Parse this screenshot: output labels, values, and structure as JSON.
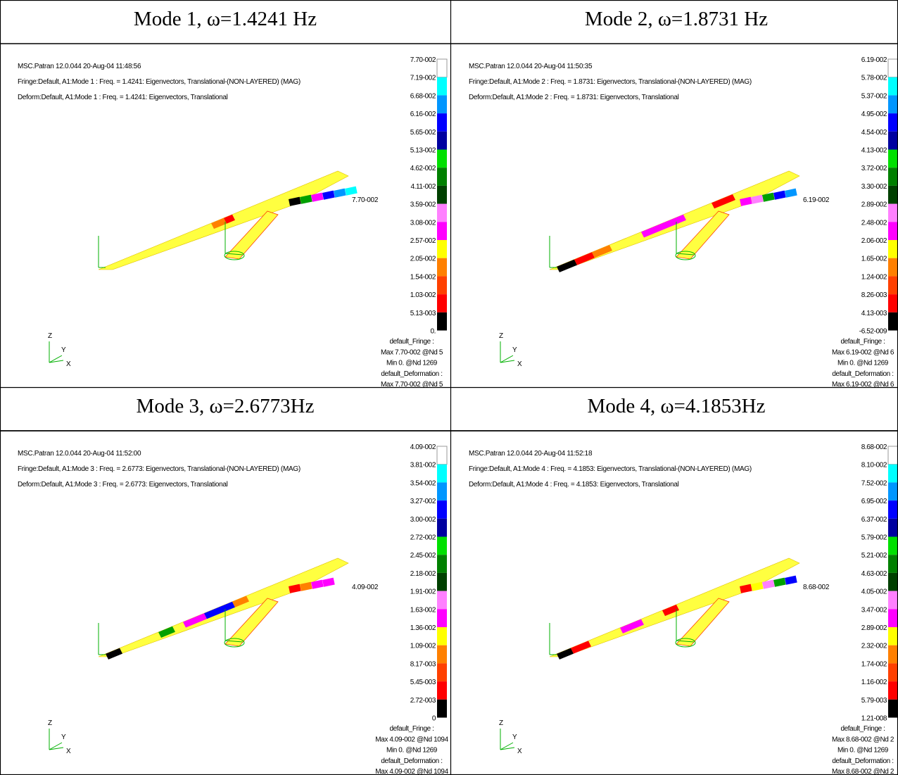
{
  "panels": [
    {
      "title": "Mode 1, ω=1.4241 Hz",
      "header_lines": [
        "MSC.Patran 12.0.044 20-Aug-04 11:48:56",
        "Fringe:Default, A1:Mode 1 : Freq. = 1.4241: Eigenvectors, Translational-(NON-LAYERED) (MAG)",
        "Deform:Default, A1:Mode 1 : Freq. = 1.4241: Eigenvectors, Translational"
      ],
      "legend_labels": [
        "7.70-002",
        "7.19-002",
        "6.68-002",
        "6.16-002",
        "5.65-002",
        "5.13-002",
        "4.62-002",
        "4.11-002",
        "3.59-002",
        "3.08-002",
        "2.57-002",
        "2.05-002",
        "1.54-002",
        "1.03-002",
        "5.13-003",
        "0."
      ],
      "callout": "7.70-002",
      "legend_notes": [
        "default_Fringe :",
        "Max 7.70-002 @Nd 5",
        "Min 0. @Nd 1269",
        "default_Deformation :",
        "Max 7.70-002 @Nd 5"
      ],
      "triad_labels": [
        "Z",
        "Y",
        "X"
      ]
    },
    {
      "title": "Mode 2, ω=1.8731 Hz",
      "header_lines": [
        "MSC.Patran 12.0.044 20-Aug-04 11:50:35",
        "Fringe:Default, A1:Mode 2 : Freq. = 1.8731: Eigenvectors, Translational-(NON-LAYERED) (MAG)",
        "Deform:Default, A1:Mode 2 : Freq. = 1.8731: Eigenvectors, Translational"
      ],
      "legend_labels": [
        "6.19-002",
        "5.78-002",
        "5.37-002",
        "4.95-002",
        "4.54-002",
        "4.13-002",
        "3.72-002",
        "3.30-002",
        "2.89-002",
        "2.48-002",
        "2.06-002",
        "1.65-002",
        "1.24-002",
        "8.26-003",
        "4.13-003",
        "-6.52-009"
      ],
      "callout": "6.19-002",
      "legend_notes": [
        "default_Fringe :",
        "Max 6.19-002 @Nd 6",
        "Min 0. @Nd 1269",
        "default_Deformation :",
        "Max 6.19-002 @Nd 6"
      ],
      "triad_labels": [
        "Z",
        "Y",
        "X"
      ]
    },
    {
      "title": "Mode 3, ω=2.6773Hz",
      "header_lines": [
        "MSC.Patran 12.0.044 20-Aug-04 11:52:00",
        "Fringe:Default, A1:Mode 3 : Freq. = 2.6773: Eigenvectors, Translational-(NON-LAYERED) (MAG)",
        "Deform:Default, A1:Mode 3 : Freq. = 2.6773: Eigenvectors, Translational"
      ],
      "legend_labels": [
        "4.09-002",
        "3.81-002",
        "3.54-002",
        "3.27-002",
        "3.00-002",
        "2.72-002",
        "2.45-002",
        "2.18-002",
        "1.91-002",
        "1.63-002",
        "1.36-002",
        "1.09-002",
        "8.17-003",
        "5.45-003",
        "2.72-003",
        "0"
      ],
      "callout": "4.09-002",
      "legend_notes": [
        "default_Fringe :",
        "Max 4.09-002 @Nd 1094",
        "Min 0. @Nd 1269",
        "default_Deformation :",
        "Max 4.09-002 @Nd 1094"
      ],
      "triad_labels": [
        "Z",
        "Y",
        "X"
      ]
    },
    {
      "title": "Mode 4, ω=4.1853Hz",
      "header_lines": [
        "MSC.Patran 12.0.044 20-Aug-04 11:52:18",
        "Fringe:Default, A1:Mode 4 : Freq. = 4.1853: Eigenvectors, Translational-(NON-LAYERED) (MAG)",
        "Deform:Default, A1:Mode 4 : Freq. = 4.1853: Eigenvectors, Translational"
      ],
      "legend_labels": [
        "8.68-002",
        "8.10-002",
        "7.52-002",
        "6.95-002",
        "6.37-002",
        "5.79-002",
        "5.21-002",
        "4.63-002",
        "4.05-002",
        "3.47-002",
        "2.89-002",
        "2.32-002",
        "1.74-002",
        "1.16-002",
        "5.79-003",
        "1.21-008"
      ],
      "callout": "8.68-002",
      "legend_notes": [
        "default_Fringe :",
        "Max 8.68-002 @Nd 2",
        "Min 0. @Nd 1269",
        "default_Deformation :",
        "Max 8.68-002 @Nd 2"
      ],
      "triad_labels": [
        "Z",
        "Y",
        "X"
      ]
    }
  ]
}
